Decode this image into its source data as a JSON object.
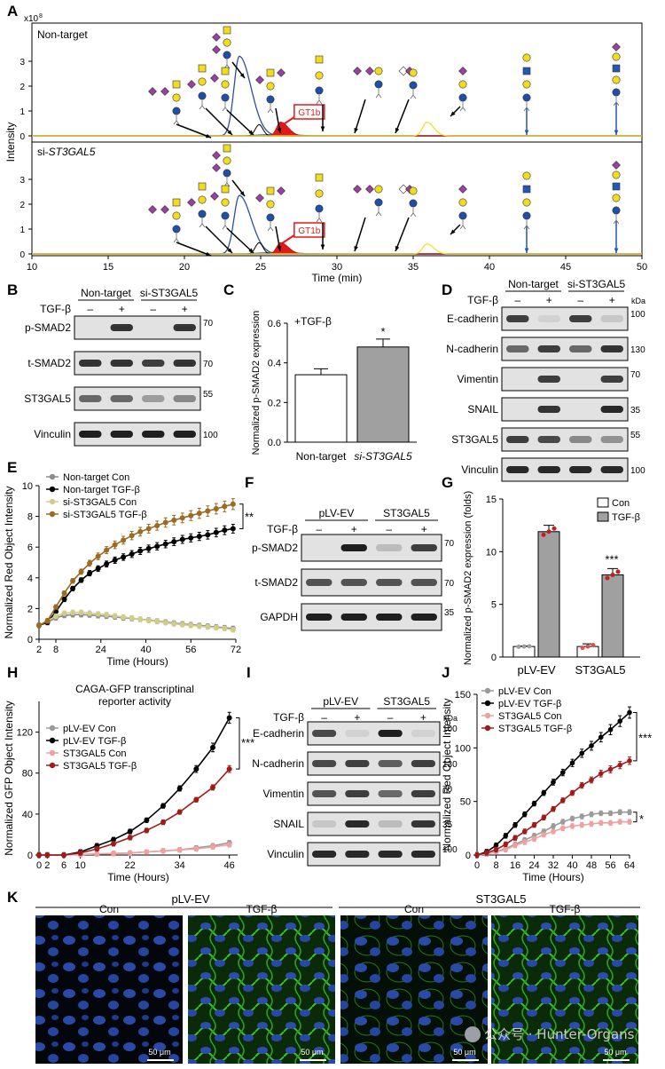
{
  "panels": {
    "A": {
      "letter": "A",
      "top_label": "Non-target",
      "bottom_label_prefix": "si-",
      "bottom_label_gene": "ST3GAL5",
      "ylabel": "Intensity",
      "exponent_base": "x10",
      "exponent_power": "8",
      "xlabel": "Time (min)",
      "gt1b_label": "GT1b"
    },
    "B": {
      "letter": "B",
      "groups": [
        "Non-target",
        "si-ST3GAL5"
      ],
      "treatment": "TGF-β",
      "signs": [
        "–",
        "+",
        "–",
        "+"
      ],
      "rows": [
        "p-SMAD2",
        "t-SMAD2",
        "ST3GAL5",
        "Vinculin"
      ],
      "mw": [
        "70",
        "70",
        "55",
        "100"
      ]
    },
    "D": {
      "letter": "D",
      "groups": [
        "Non-target",
        "si-ST3GAL5"
      ],
      "treatment": "TGF-β",
      "signs": [
        "–",
        "+",
        "–",
        "+"
      ],
      "kda": "kDa",
      "rows": [
        "E-cadherin",
        "N-cadherin",
        "Vimentin",
        "SNAIL",
        "ST3GAL5",
        "Vinculin"
      ],
      "mw": [
        "100",
        "130",
        "70",
        "35",
        "55",
        "100"
      ]
    },
    "F": {
      "letter": "F",
      "groups": [
        "pLV-EV",
        "ST3GAL5"
      ],
      "treatment": "TGF-β",
      "signs": [
        "–",
        "+",
        "–",
        "+"
      ],
      "rows": [
        "p-SMAD2",
        "t-SMAD2",
        "GAPDH"
      ],
      "mw": [
        "70",
        "70",
        "35"
      ]
    },
    "I": {
      "letter": "I",
      "groups": [
        "pLV-EV",
        "ST3GAL5"
      ],
      "treatment": "TGF-β",
      "signs": [
        "–",
        "+",
        "–",
        "+"
      ],
      "kda": "kDa",
      "rows": [
        "E-cadherin",
        "N-cadherin",
        "Vimentin",
        "SNAIL",
        "Vinculin"
      ],
      "mw": [
        "100",
        "130",
        "70",
        "35",
        "100"
      ]
    },
    "K": {
      "letter": "K",
      "group_left": "pLV-EV",
      "group_right": "ST3GAL5",
      "conditions": [
        "Con",
        "TGF-β",
        "Con",
        "TGF-β"
      ],
      "scalebar": "50 μm",
      "watermark": "公众号 · Hunter-Organs"
    }
  },
  "chart_data": [
    {
      "panel": "A",
      "type": "line",
      "xlabel": "Time (min)",
      "ylabel": "Intensity",
      "x_ticks": [
        10,
        15,
        20,
        25,
        30,
        35,
        40,
        45,
        50
      ],
      "y_ticks": [
        0,
        1,
        2,
        3
      ],
      "xlim": [
        10,
        50
      ],
      "ylim": [
        0,
        4
      ],
      "subplots": [
        {
          "label": "Non-target",
          "peaks": [
            {
              "series": "blue",
              "x": 23.6,
              "height": 3.2
            },
            {
              "series": "red (GT1b)",
              "x": 26.3,
              "height": 0.55
            },
            {
              "series": "yellow",
              "x": 35.9,
              "height": 0.55
            }
          ]
        },
        {
          "label": "si-ST3GAL5",
          "peaks": [
            {
              "series": "blue",
              "x": 23.6,
              "height": 2.35
            },
            {
              "series": "red (GT1b)",
              "x": 26.3,
              "height": 0.45
            },
            {
              "series": "yellow",
              "x": 35.9,
              "height": 0.4
            }
          ]
        }
      ],
      "annotation": "GT1b"
    },
    {
      "panel": "C",
      "type": "bar",
      "title": "+TGF-β",
      "categories": [
        "Non-target",
        "si-ST3GAL5"
      ],
      "values": [
        0.34,
        0.48
      ],
      "errors": [
        0.03,
        0.04
      ],
      "colors": [
        "#ffffff",
        "#a0a0a0"
      ],
      "ylabel": "Normalized p-SMAD2 expression",
      "ylim": [
        0,
        0.6
      ],
      "y_ticks": [
        "0.0",
        "0.2",
        "0.4",
        "0.6"
      ],
      "significance": "*"
    },
    {
      "panel": "E",
      "type": "line",
      "xlabel": "Time (Hours)",
      "ylabel": "Normalized Red Object Intensity",
      "x_ticks": [
        2,
        8,
        24,
        40,
        56,
        72
      ],
      "y_ticks": [
        0,
        2,
        4,
        6,
        8,
        10
      ],
      "xlim": [
        2,
        72
      ],
      "ylim": [
        0,
        10
      ],
      "x": [
        2,
        5,
        8,
        11,
        14,
        17,
        20,
        23,
        26,
        29,
        32,
        35,
        38,
        41,
        44,
        47,
        50,
        53,
        56,
        59,
        62,
        65,
        68,
        71
      ],
      "series": [
        {
          "name": "Non-target Con",
          "color": "#8c8c8c",
          "values": [
            0.9,
            1.1,
            1.4,
            1.55,
            1.6,
            1.6,
            1.58,
            1.54,
            1.5,
            1.45,
            1.4,
            1.35,
            1.3,
            1.25,
            1.18,
            1.12,
            1.05,
            1.0,
            0.95,
            0.9,
            0.85,
            0.8,
            0.75,
            0.7
          ]
        },
        {
          "name": "Non-target TGF-β",
          "color": "#000000",
          "values": [
            0.9,
            1.1,
            1.8,
            2.6,
            3.3,
            3.85,
            4.3,
            4.6,
            4.9,
            5.15,
            5.35,
            5.55,
            5.75,
            5.9,
            6.05,
            6.2,
            6.35,
            6.5,
            6.6,
            6.7,
            6.8,
            6.95,
            7.1,
            7.2
          ]
        },
        {
          "name": "si-ST3GAL5 Con",
          "color": "#d2cc8c",
          "values": [
            0.9,
            1.2,
            1.5,
            1.7,
            1.75,
            1.75,
            1.7,
            1.65,
            1.6,
            1.52,
            1.45,
            1.38,
            1.3,
            1.22,
            1.15,
            1.08,
            1.0,
            0.95,
            0.9,
            0.85,
            0.8,
            0.75,
            0.7,
            0.62
          ]
        },
        {
          "name": "si-ST3GAL5 TGF-β",
          "color": "#9c6a20",
          "values": [
            0.9,
            1.2,
            2.1,
            3.0,
            3.8,
            4.4,
            4.95,
            5.4,
            5.8,
            6.15,
            6.45,
            6.75,
            7.0,
            7.2,
            7.4,
            7.6,
            7.75,
            7.9,
            8.05,
            8.2,
            8.35,
            8.5,
            8.65,
            8.8
          ]
        }
      ],
      "significance": "**"
    },
    {
      "panel": "G",
      "type": "bar",
      "categories": [
        "pLV-EV",
        "ST3GAL5"
      ],
      "series": [
        {
          "name": "Con",
          "color": "#ffffff",
          "values": [
            1.0,
            1.0
          ],
          "errors": [
            0.05,
            0.25
          ]
        },
        {
          "name": "TGF-β",
          "color": "#a0a0a0",
          "values": [
            11.9,
            7.8
          ],
          "errors": [
            0.6,
            0.6
          ]
        }
      ],
      "ylabel": "Normalized p-SMAD2 expression (folds)",
      "ylim": [
        0,
        15
      ],
      "y_ticks": [
        0,
        5,
        10,
        15
      ],
      "significance": "***"
    },
    {
      "panel": "H",
      "type": "line",
      "title": "CAGA-GFP transcriptinal reporter activity",
      "xlabel": "Time (Hours)",
      "ylabel": "Normalized GFP Object Intensity",
      "x_ticks": [
        0,
        2,
        6,
        10,
        22,
        34,
        46
      ],
      "y_ticks": [
        0,
        40,
        80,
        120
      ],
      "xlim": [
        0,
        48
      ],
      "ylim": [
        0,
        150
      ],
      "x": [
        0,
        2,
        6,
        10,
        14,
        18,
        22,
        26,
        30,
        34,
        38,
        42,
        46
      ],
      "series": [
        {
          "name": "pLV-EV Con",
          "color": "#9a9a9a",
          "values": [
            0,
            0,
            0,
            0.5,
            1,
            1.5,
            2,
            3,
            4,
            5,
            7,
            9,
            12
          ]
        },
        {
          "name": "pLV-EV TGF-β",
          "color": "#000000",
          "values": [
            0,
            0,
            0,
            3,
            9,
            15,
            23,
            34,
            48,
            65,
            84,
            105,
            134
          ]
        },
        {
          "name": "ST3GAL5 Con",
          "color": "#f0a0a0",
          "values": [
            0,
            0,
            0,
            0.5,
            1,
            1.5,
            2,
            3,
            4,
            5,
            6,
            8,
            10
          ]
        },
        {
          "name": "ST3GAL5 TGF-β",
          "color": "#a01c1c",
          "values": [
            0,
            0,
            0,
            2,
            6,
            11,
            17,
            24,
            32,
            42,
            54,
            66,
            84
          ]
        }
      ],
      "significance": "***"
    },
    {
      "panel": "J",
      "type": "line",
      "xlabel": "Time (Hours)",
      "ylabel": "Normalized Red Object Intensity",
      "x_ticks": [
        0,
        8,
        16,
        24,
        32,
        40,
        48,
        56,
        64
      ],
      "y_ticks": [
        0,
        50,
        100,
        150
      ],
      "xlim": [
        0,
        64
      ],
      "ylim": [
        0,
        150
      ],
      "x": [
        0,
        4,
        8,
        12,
        16,
        20,
        24,
        28,
        32,
        36,
        40,
        44,
        48,
        52,
        56,
        60,
        64
      ],
      "series": [
        {
          "name": "pLV-EV Con",
          "color": "#9a9a9a",
          "values": [
            0,
            1,
            3,
            6,
            10,
            14,
            18,
            22,
            27,
            31,
            34,
            36,
            38,
            39,
            39,
            40,
            40
          ]
        },
        {
          "name": "pLV-EV TGF-β",
          "color": "#000000",
          "values": [
            0,
            3,
            9,
            18,
            28,
            38,
            48,
            58,
            68,
            77,
            86,
            95,
            102,
            110,
            117,
            125,
            133
          ]
        },
        {
          "name": "ST3GAL5 Con",
          "color": "#f0a0a0",
          "values": [
            0,
            1,
            3,
            5,
            9,
            12,
            15,
            19,
            22,
            25,
            27,
            28,
            29,
            30,
            30,
            31,
            31
          ]
        },
        {
          "name": "ST3GAL5 TGF-β",
          "color": "#a01c1c",
          "values": [
            0,
            2,
            5,
            10,
            16,
            22,
            28,
            35,
            43,
            51,
            58,
            65,
            70,
            76,
            80,
            84,
            88
          ]
        }
      ],
      "significance": [
        "***",
        "*"
      ]
    }
  ]
}
